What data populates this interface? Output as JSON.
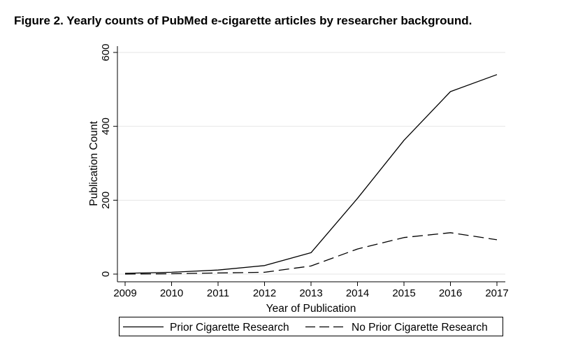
{
  "figure": {
    "title": "Figure 2.  Yearly counts of PubMed e-cigarette articles by researcher background."
  },
  "chart_data": {
    "type": "line",
    "title": "",
    "xlabel": "Year of Publication",
    "ylabel": "Publication Count",
    "x": [
      2009,
      2010,
      2011,
      2012,
      2013,
      2014,
      2015,
      2016,
      2017
    ],
    "xticks": [
      "2009",
      "2010",
      "2011",
      "2012",
      "2013",
      "2014",
      "2015",
      "2016",
      "2017"
    ],
    "yticks": [
      "0",
      "200",
      "400",
      "600"
    ],
    "ytick_values": [
      0,
      200,
      400,
      600
    ],
    "ylim": [
      0,
      600
    ],
    "grid": true,
    "legend_position": "bottom",
    "series": [
      {
        "name": "Prior Cigarette Research",
        "line_style": "solid",
        "values": [
          2,
          5,
          11,
          23,
          58,
          205,
          362,
          494,
          540
        ]
      },
      {
        "name": "No Prior Cigarette Research",
        "line_style": "dashed",
        "values": [
          0,
          1,
          3,
          5,
          22,
          68,
          99,
          112,
          93
        ]
      }
    ]
  }
}
